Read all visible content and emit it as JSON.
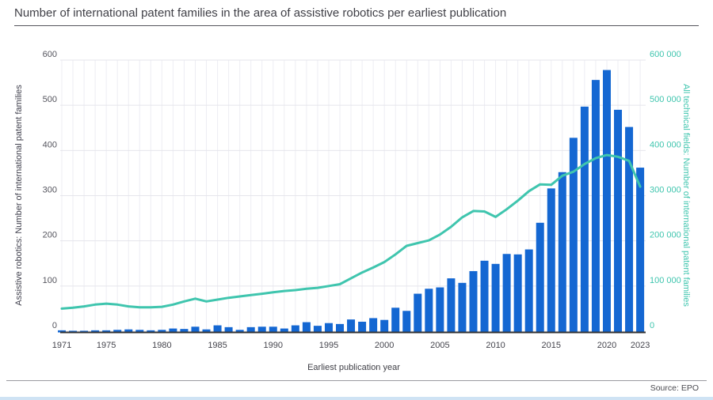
{
  "header": {
    "title": "Number of international patent families in the area of assistive robotics per earliest publication"
  },
  "footer": {
    "source_label": "Source: EPO"
  },
  "chart_data": {
    "type": "bar",
    "title": "Number of international patent families in the area of assistive robotics per earliest publication",
    "xlabel": "Earliest publication year",
    "x": [
      1971,
      1972,
      1973,
      1974,
      1975,
      1976,
      1977,
      1978,
      1979,
      1980,
      1981,
      1982,
      1983,
      1984,
      1985,
      1986,
      1987,
      1988,
      1989,
      1990,
      1991,
      1992,
      1993,
      1994,
      1995,
      1996,
      1997,
      1998,
      1999,
      2000,
      2001,
      2002,
      2003,
      2004,
      2005,
      2006,
      2007,
      2008,
      2009,
      2010,
      2011,
      2012,
      2013,
      2014,
      2015,
      2016,
      2017,
      2018,
      2019,
      2020,
      2021,
      2022,
      2023
    ],
    "x_ticks": [
      1971,
      1975,
      1980,
      1985,
      1990,
      1995,
      2000,
      2005,
      2010,
      2015,
      2020,
      2023
    ],
    "left_axis": {
      "label": "Assistive robotics: Number of international patent families",
      "min": 0,
      "max": 600,
      "step": 100
    },
    "right_axis": {
      "label": "All technical fields: Number of international patent families",
      "min": 0,
      "max": 600000,
      "step": 100000
    },
    "grid": "on",
    "legend": "none",
    "series": [
      {
        "name": "Assistive robotics: Number of international patent families",
        "type": "bar",
        "axis": "left",
        "color": "#1467d2",
        "values": [
          2,
          1,
          1,
          2,
          2,
          3,
          4,
          3,
          2,
          3,
          6,
          5,
          10,
          4,
          13,
          9,
          3,
          9,
          10,
          10,
          6,
          13,
          20,
          12,
          18,
          16,
          26,
          21,
          29,
          25,
          52,
          45,
          83,
          94,
          97,
          117,
          107,
          133,
          156,
          149,
          171,
          170,
          181,
          240,
          316,
          352,
          428,
          497,
          556,
          578,
          490,
          452,
          362
        ]
      },
      {
        "name": "All technical fields: Number of international patent families",
        "type": "line",
        "axis": "right",
        "color": "#3fc5ae",
        "values": [
          50000,
          52000,
          55000,
          59000,
          61000,
          59000,
          55000,
          53000,
          53000,
          54000,
          59000,
          66000,
          72000,
          66000,
          70000,
          74000,
          77000,
          80000,
          83000,
          86000,
          89000,
          91000,
          94000,
          96000,
          100000,
          104000,
          117000,
          130000,
          141000,
          153000,
          170000,
          189000,
          195000,
          201000,
          214000,
          231000,
          252000,
          266000,
          265000,
          253000,
          270000,
          289000,
          310000,
          325000,
          324000,
          344000,
          353000,
          370000,
          383000,
          390000,
          386000,
          377000,
          320000
        ]
      }
    ],
    "colors": {
      "bar": "#1467d2",
      "line": "#3fc5ae",
      "right_tick_text": "#3fc5ae",
      "left_tick_text": "#55555e",
      "x_tick_text": "#45454d",
      "grid_vertical": "#ededf3",
      "grid_horizontal": "#e5e5eb",
      "axis_line": "#333333"
    }
  }
}
